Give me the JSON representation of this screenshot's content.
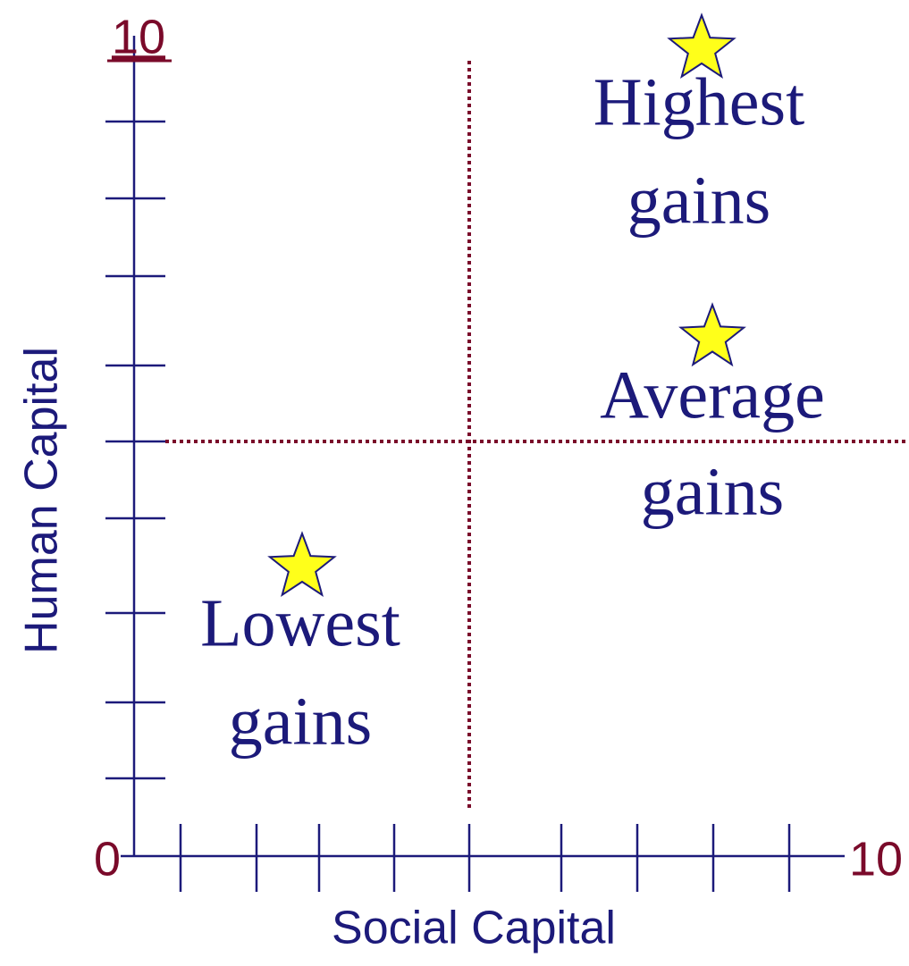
{
  "axes": {
    "y_axis_label": "Human Capital",
    "x_axis_label": "Social Capital",
    "y_max_label": "10",
    "origin_label": "0",
    "x_max_label": "10"
  },
  "quadrants": [
    {
      "lines": [
        "Highest",
        "gains"
      ]
    },
    {
      "lines": [
        "Average",
        "gains"
      ]
    },
    {
      "lines": [
        "Lowest",
        "gains"
      ]
    }
  ]
}
